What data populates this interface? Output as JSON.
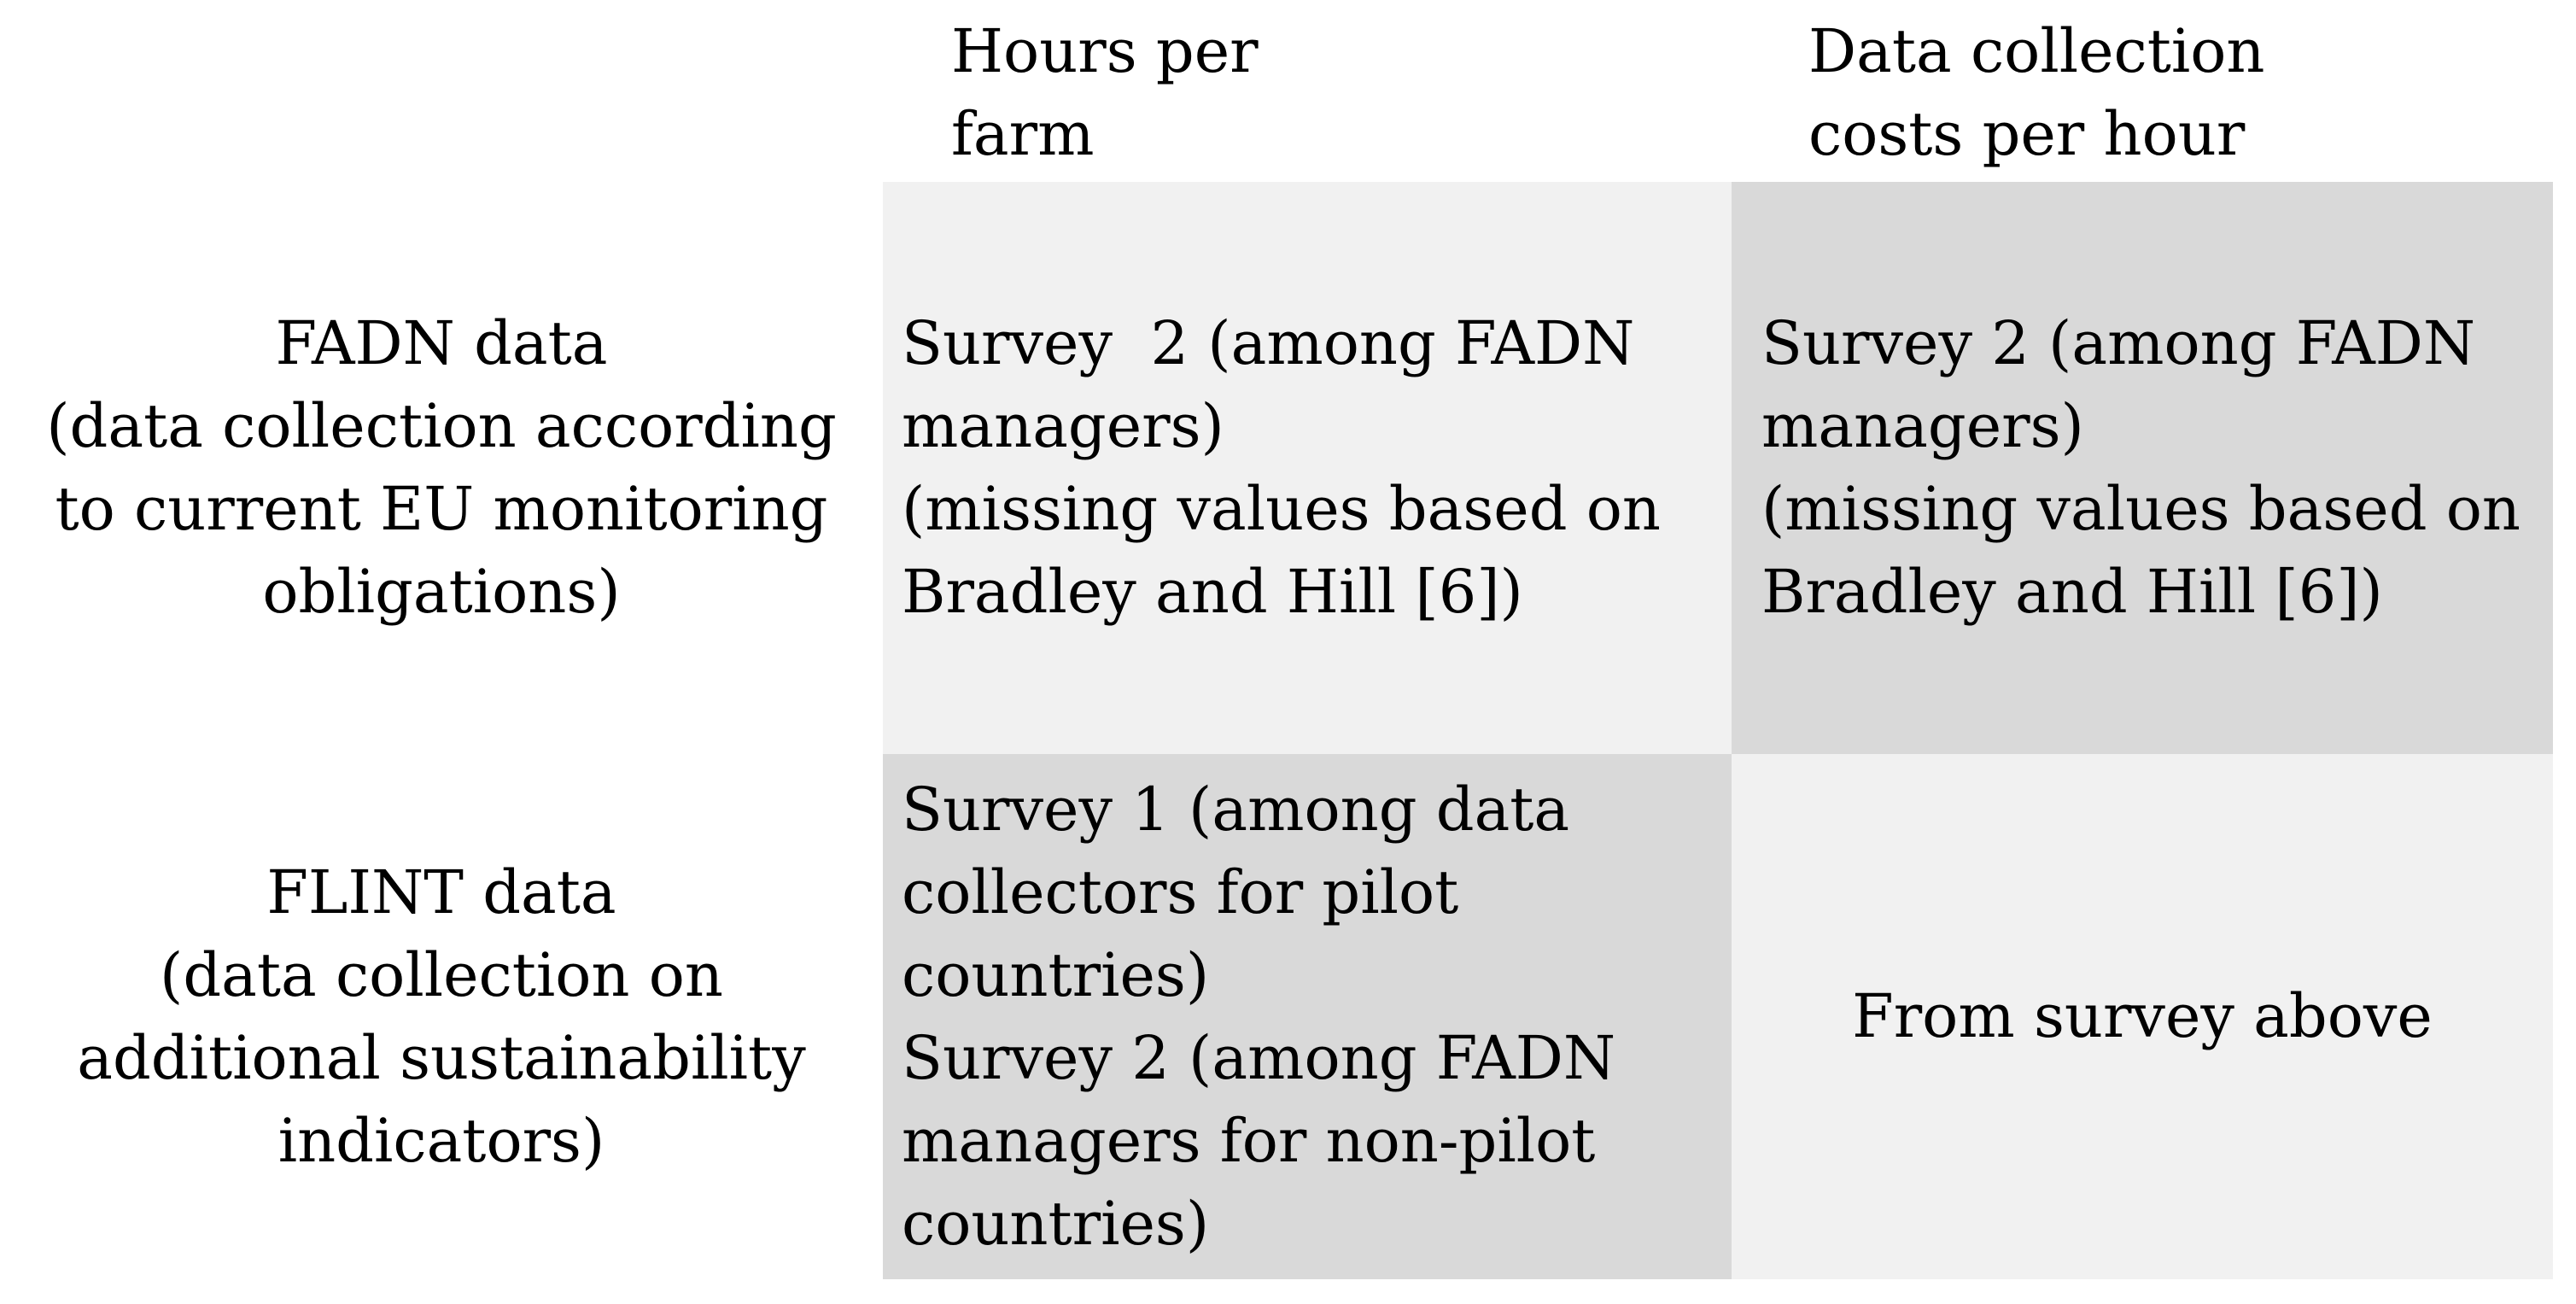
{
  "colors": {
    "page_bg": "#ffffff",
    "shade_light": "#f1f1f1",
    "shade_dark": "#d9d9d9",
    "text": "#000000"
  },
  "table": {
    "column_headers": {
      "hours_per_farm": {
        "lines": [
          "Hours per",
          "farm"
        ]
      },
      "cost_per_hour": {
        "lines": [
          "Data collection",
          "costs per hour"
        ]
      }
    },
    "rows": [
      {
        "label": {
          "lines": [
            "FADN data",
            "(data collection according",
            "to current EU monitoring",
            "obligations)"
          ]
        },
        "hours_per_farm": {
          "lines": [
            "Survey  2 (among FADN",
            "managers)",
            "(missing values based on",
            "Bradley and Hill [6])"
          ]
        },
        "cost_per_hour": {
          "lines": [
            "Survey 2 (among FADN",
            "managers)",
            "(missing values based on",
            "Bradley and Hill [6])"
          ]
        }
      },
      {
        "label": {
          "lines": [
            "FLINT data",
            "(data collection on",
            "additional sustainability",
            "indicators)"
          ]
        },
        "hours_per_farm": {
          "lines": [
            "Survey 1 (among data",
            "collectors for pilot",
            "countries)",
            "Survey 2 (among FADN",
            "managers for non-pilot",
            "countries)"
          ]
        },
        "cost_per_hour": {
          "lines": [
            "From survey above"
          ]
        }
      }
    ]
  }
}
